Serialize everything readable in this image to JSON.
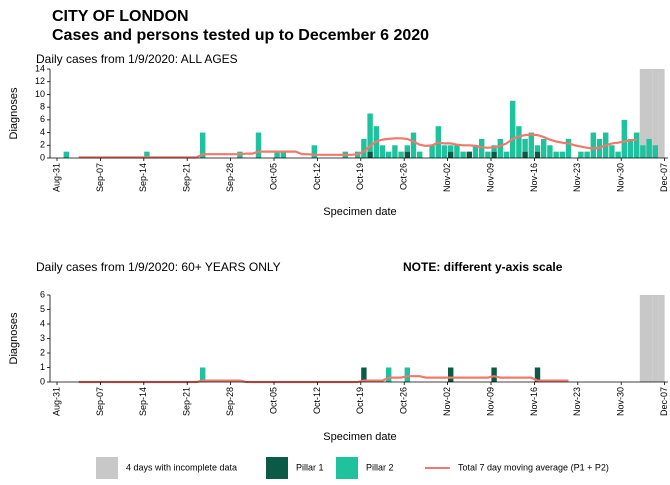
{
  "header": {
    "title": "CITY OF LONDON",
    "subtitle": "Cases and persons tested up to December  6 2020"
  },
  "chart_data": [
    {
      "type": "bar",
      "title": "Daily cases from 1/9/2020: ALL AGES",
      "xlabel": "Specimen date",
      "ylabel": "Diagnoses",
      "ylim": [
        0,
        14
      ],
      "yticks": [
        0,
        2,
        4,
        6,
        8,
        10,
        12,
        14
      ],
      "categories": [
        "Aug-31",
        null,
        null,
        null,
        null,
        null,
        null,
        "Sep-07",
        null,
        null,
        null,
        null,
        null,
        null,
        "Sep-14",
        null,
        null,
        null,
        null,
        null,
        null,
        "Sep-21",
        null,
        null,
        null,
        null,
        null,
        null,
        "Sep-28",
        null,
        null,
        null,
        null,
        null,
        null,
        "Oct-05",
        null,
        null,
        null,
        null,
        null,
        null,
        "Oct-12",
        null,
        null,
        null,
        null,
        null,
        null,
        "Oct-19",
        null,
        null,
        null,
        null,
        null,
        null,
        "Oct-26",
        null,
        null,
        null,
        null,
        null,
        null,
        "Nov-02",
        null,
        null,
        null,
        null,
        null,
        null,
        "Nov-09",
        null,
        null,
        null,
        null,
        null,
        null,
        "Nov-16",
        null,
        null,
        null,
        null,
        null,
        null,
        "Nov-23",
        null,
        null,
        null,
        null,
        null,
        null,
        "Nov-30",
        null,
        null,
        null,
        null,
        null,
        null,
        "Dec-07"
      ],
      "series": [
        {
          "name": "4 days with incomplete data",
          "type": "bar",
          "color": "#c8c8c8",
          "values": [
            null,
            null,
            null,
            null,
            null,
            null,
            null,
            null,
            null,
            null,
            null,
            null,
            null,
            null,
            null,
            null,
            null,
            null,
            null,
            null,
            null,
            null,
            null,
            null,
            null,
            null,
            null,
            null,
            null,
            null,
            null,
            null,
            null,
            null,
            null,
            null,
            null,
            null,
            null,
            null,
            null,
            null,
            null,
            null,
            null,
            null,
            null,
            null,
            null,
            null,
            null,
            null,
            null,
            null,
            null,
            null,
            null,
            null,
            null,
            null,
            null,
            null,
            null,
            null,
            null,
            null,
            null,
            null,
            null,
            null,
            null,
            null,
            null,
            null,
            null,
            null,
            null,
            null,
            null,
            null,
            null,
            null,
            null,
            null,
            null,
            null,
            null,
            null,
            null,
            null,
            null,
            null,
            null,
            null,
            14,
            14,
            14,
            14,
            null
          ]
        },
        {
          "name": "Pillar 1",
          "type": "bar",
          "stacked": true,
          "color": "#0b5a46",
          "values": [
            0,
            0,
            0,
            0,
            0,
            0,
            0,
            0,
            0,
            0,
            0,
            0,
            0,
            0,
            0,
            0,
            0,
            0,
            0,
            0,
            0,
            0,
            0,
            0,
            0,
            0,
            0,
            0,
            0,
            0,
            0,
            0,
            0,
            0,
            0,
            0,
            0,
            0,
            0,
            0,
            0,
            0,
            0,
            0,
            0,
            0,
            0,
            0,
            0,
            0,
            1,
            0,
            0,
            0,
            0,
            0,
            1,
            0,
            0,
            0,
            0,
            0,
            0,
            1,
            0,
            0,
            1,
            0,
            0,
            0,
            1,
            0,
            0,
            0,
            0,
            1,
            0,
            1,
            0,
            0,
            0,
            0,
            0,
            0,
            0,
            0,
            0,
            0,
            0,
            0,
            0,
            0,
            0,
            0,
            0,
            0,
            0,
            0,
            null
          ]
        },
        {
          "name": "Pillar 2",
          "type": "bar",
          "stacked": true,
          "color": "#1ec29c",
          "values": [
            0,
            1,
            0,
            0,
            0,
            0,
            0,
            0,
            0,
            0,
            0,
            0,
            0,
            0,
            1,
            0,
            0,
            0,
            0,
            0,
            0,
            0,
            0,
            4,
            0,
            0,
            0,
            0,
            0,
            1,
            0,
            0,
            4,
            0,
            0,
            1,
            1,
            0,
            0,
            0,
            0,
            2,
            0,
            0,
            0,
            0,
            1,
            0,
            1,
            3,
            6,
            5,
            2,
            1,
            2,
            1,
            1,
            4,
            1,
            0,
            2,
            5,
            2,
            1,
            2,
            1,
            0,
            2,
            3,
            1,
            1,
            3,
            1,
            9,
            5,
            2,
            4,
            1,
            3,
            2,
            1,
            1,
            3,
            0,
            1,
            1,
            4,
            3,
            4,
            2,
            1,
            6,
            3,
            4,
            2,
            3,
            2,
            0,
            null
          ]
        },
        {
          "name": "Total 7 day moving average (P1 + P2)",
          "type": "line",
          "color": "#f0786c",
          "values": [
            null,
            null,
            null,
            0.1,
            0.1,
            0.1,
            0.1,
            0.1,
            0.1,
            0.1,
            0.1,
            0.1,
            0.1,
            0.1,
            0.1,
            0.1,
            0.1,
            0.1,
            0.1,
            0.1,
            0.1,
            0.1,
            0.1,
            0.6,
            0.6,
            0.6,
            0.6,
            0.6,
            0.6,
            0.6,
            0.7,
            0.7,
            1.0,
            1.0,
            1.0,
            1.0,
            1.0,
            1.0,
            1.0,
            0.6,
            0.6,
            0.5,
            0.5,
            0.5,
            0.5,
            0.5,
            0.5,
            0.5,
            0.6,
            1.0,
            1.9,
            2.6,
            2.9,
            3.0,
            3.1,
            3.1,
            3.0,
            2.6,
            2.1,
            1.9,
            2.0,
            2.4,
            2.3,
            2.3,
            2.1,
            2.0,
            2.0,
            1.9,
            1.7,
            1.6,
            1.7,
            1.9,
            2.3,
            3.0,
            3.4,
            3.6,
            3.7,
            3.6,
            3.3,
            2.9,
            2.6,
            2.4,
            2.3,
            2.0,
            1.8,
            1.6,
            1.5,
            1.6,
            2.0,
            2.3,
            2.4,
            2.6,
            2.8,
            2.9,
            null,
            null,
            null,
            null,
            null
          ]
        }
      ]
    },
    {
      "type": "bar",
      "title": "Daily cases from 1/9/2020: 60+ YEARS ONLY",
      "annotation": "NOTE: different y-axis scale",
      "xlabel": "Specimen date",
      "ylabel": "Diagnoses",
      "ylim": [
        0,
        6
      ],
      "yticks": [
        0,
        1,
        2,
        3,
        4,
        5,
        6
      ],
      "categories": [
        "Aug-31",
        null,
        null,
        null,
        null,
        null,
        null,
        "Sep-07",
        null,
        null,
        null,
        null,
        null,
        null,
        "Sep-14",
        null,
        null,
        null,
        null,
        null,
        null,
        "Sep-21",
        null,
        null,
        null,
        null,
        null,
        null,
        "Sep-28",
        null,
        null,
        null,
        null,
        null,
        null,
        "Oct-05",
        null,
        null,
        null,
        null,
        null,
        null,
        "Oct-12",
        null,
        null,
        null,
        null,
        null,
        null,
        "Oct-19",
        null,
        null,
        null,
        null,
        null,
        null,
        "Oct-26",
        null,
        null,
        null,
        null,
        null,
        null,
        "Nov-02",
        null,
        null,
        null,
        null,
        null,
        null,
        "Nov-09",
        null,
        null,
        null,
        null,
        null,
        null,
        "Nov-16",
        null,
        null,
        null,
        null,
        null,
        null,
        "Nov-23",
        null,
        null,
        null,
        null,
        null,
        null,
        "Nov-30",
        null,
        null,
        null,
        null,
        null,
        null,
        "Dec-07"
      ],
      "series": [
        {
          "name": "4 days with incomplete data",
          "type": "bar",
          "color": "#c8c8c8",
          "values": [
            null,
            null,
            null,
            null,
            null,
            null,
            null,
            null,
            null,
            null,
            null,
            null,
            null,
            null,
            null,
            null,
            null,
            null,
            null,
            null,
            null,
            null,
            null,
            null,
            null,
            null,
            null,
            null,
            null,
            null,
            null,
            null,
            null,
            null,
            null,
            null,
            null,
            null,
            null,
            null,
            null,
            null,
            null,
            null,
            null,
            null,
            null,
            null,
            null,
            null,
            null,
            null,
            null,
            null,
            null,
            null,
            null,
            null,
            null,
            null,
            null,
            null,
            null,
            null,
            null,
            null,
            null,
            null,
            null,
            null,
            null,
            null,
            null,
            null,
            null,
            null,
            null,
            null,
            null,
            null,
            null,
            null,
            null,
            null,
            null,
            null,
            null,
            null,
            null,
            null,
            null,
            null,
            null,
            null,
            6,
            6,
            6,
            6,
            null
          ]
        },
        {
          "name": "Pillar 1",
          "type": "bar",
          "stacked": true,
          "color": "#0b5a46",
          "values": [
            0,
            0,
            0,
            0,
            0,
            0,
            0,
            0,
            0,
            0,
            0,
            0,
            0,
            0,
            0,
            0,
            0,
            0,
            0,
            0,
            0,
            0,
            0,
            0,
            0,
            0,
            0,
            0,
            0,
            0,
            0,
            0,
            0,
            0,
            0,
            0,
            0,
            0,
            0,
            0,
            0,
            0,
            0,
            0,
            0,
            0,
            0,
            0,
            0,
            1,
            0,
            0,
            0,
            0,
            0,
            0,
            0,
            0,
            0,
            0,
            0,
            0,
            0,
            1,
            0,
            0,
            0,
            0,
            0,
            0,
            1,
            0,
            0,
            0,
            0,
            0,
            0,
            1,
            0,
            0,
            0,
            0,
            0,
            0,
            0,
            0,
            0,
            0,
            0,
            0,
            0,
            0,
            0,
            0,
            0,
            0,
            0,
            0,
            null
          ]
        },
        {
          "name": "Pillar 2",
          "type": "bar",
          "stacked": true,
          "color": "#1ec29c",
          "values": [
            0,
            0,
            0,
            0,
            0,
            0,
            0,
            0,
            0,
            0,
            0,
            0,
            0,
            0,
            0,
            0,
            0,
            0,
            0,
            0,
            0,
            0,
            0,
            1,
            0,
            0,
            0,
            0,
            0,
            0,
            0,
            0,
            0,
            0,
            0,
            0,
            0,
            0,
            0,
            0,
            0,
            0,
            0,
            0,
            0,
            0,
            0,
            0,
            0,
            0,
            0,
            0,
            0,
            1,
            0,
            0,
            1,
            0,
            0,
            0,
            0,
            0,
            0,
            0,
            0,
            0,
            0,
            0,
            0,
            0,
            0,
            0,
            0,
            0,
            0,
            0,
            0,
            0,
            0,
            0,
            0,
            0,
            0,
            0,
            0,
            0,
            0,
            0,
            0,
            0,
            0,
            0,
            0,
            0,
            0,
            0,
            0,
            0,
            null
          ]
        },
        {
          "name": "Total 7 day moving average (P1 + P2)",
          "type": "line",
          "color": "#f0786c",
          "values": [
            null,
            null,
            null,
            0,
            0,
            0,
            0,
            0,
            0,
            0,
            0,
            0,
            0,
            0,
            0,
            0,
            0,
            0,
            0,
            0,
            0,
            0,
            0,
            0.1,
            0.1,
            0.1,
            0.1,
            0.1,
            0.1,
            0.1,
            0,
            0,
            0,
            0,
            0,
            0,
            0,
            0,
            0,
            0,
            0,
            0,
            0,
            0,
            0,
            0,
            0,
            0,
            0,
            0.1,
            0.1,
            0.1,
            0.1,
            0.3,
            0.3,
            0.3,
            0.4,
            0.4,
            0.4,
            0.3,
            0.3,
            0.3,
            0.3,
            0.3,
            0.3,
            0.3,
            0.3,
            0.3,
            0.3,
            0.3,
            0.4,
            0.3,
            0.3,
            0.3,
            0.3,
            0.3,
            0.3,
            0.1,
            0.1,
            0.1,
            0.1,
            0.1,
            0.1,
            null,
            null,
            null,
            null,
            null,
            null,
            null,
            null,
            null,
            null,
            null,
            null,
            null,
            null,
            null,
            null
          ]
        }
      ]
    }
  ]
}
